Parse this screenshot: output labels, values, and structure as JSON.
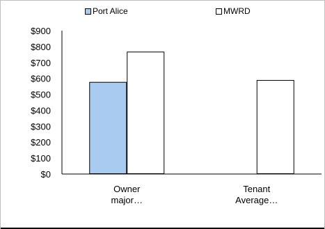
{
  "chart_data": {
    "type": "bar",
    "categories": [
      "Owner major…",
      "Tenant Average…"
    ],
    "category_lines": [
      [
        "Owner",
        "major…"
      ],
      [
        "Tenant",
        "Average…"
      ]
    ],
    "series": [
      {
        "name": "Port Alice",
        "values": [
          578,
          null
        ],
        "color": "#a9cbef"
      },
      {
        "name": "MWRD",
        "values": [
          768,
          590
        ],
        "color": "#ffffff"
      }
    ],
    "y_ticks": [
      "$0",
      "$100",
      "$200",
      "$300",
      "$400",
      "$500",
      "$600",
      "$700",
      "$800",
      "$900"
    ],
    "ylim": [
      0,
      900
    ],
    "legend_position": "top",
    "grid": false
  }
}
